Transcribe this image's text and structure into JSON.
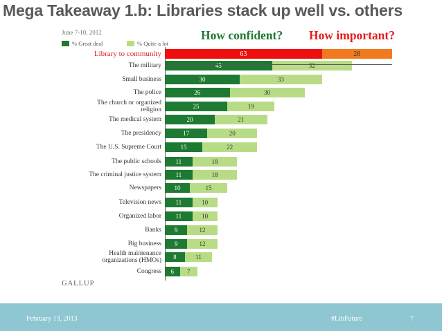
{
  "slide": {
    "title": "Mega Takeaway 1.b: Libraries stack up well vs. others",
    "subtitle_date": "June 7-10, 2012",
    "header_confident": "How confident?",
    "header_important": "How important?",
    "source": "GALLUP",
    "footer": {
      "date": "February 13, 2013",
      "tag": "#LibFuture",
      "page": "7"
    }
  },
  "colors": {
    "great_deal": "#1e7a32",
    "quite_a_lot": "#b8dc86",
    "highlight_confident": "#f00e0e",
    "highlight_important": "#f27a1e",
    "footer_bg": "#8ec6d1"
  },
  "chart_data": {
    "type": "bar",
    "orientation": "horizontal",
    "stacked": true,
    "title": "Mega Takeaway 1.b: Libraries stack up well vs. others",
    "legend": [
      "% Great deal",
      "% Quite a lot"
    ],
    "legend_position": "top-left",
    "categories": [
      "Library to community",
      "The military",
      "Small business",
      "The police",
      "The church or organized religion",
      "The medical system",
      "The presidency",
      "The U.S. Supreme Court",
      "The public schools",
      "The criminal justice system",
      "Newspapers",
      "Television news",
      "Organized labor",
      "Banks",
      "Big business",
      "Health maintenance organizations (HMOs)",
      "Congress"
    ],
    "series": [
      {
        "name": "% Great deal",
        "values": [
          63,
          43,
          30,
          26,
          25,
          20,
          17,
          15,
          11,
          11,
          10,
          11,
          11,
          9,
          9,
          8,
          6
        ]
      },
      {
        "name": "% Quite a lot",
        "values": [
          28,
          32,
          33,
          30,
          19,
          21,
          20,
          22,
          18,
          18,
          15,
          10,
          10,
          12,
          12,
          11,
          7
        ]
      }
    ],
    "highlight_category": "Library to community",
    "highlight_series_names": [
      "How confident?",
      "How important?"
    ],
    "xlim": [
      0,
      100
    ]
  }
}
